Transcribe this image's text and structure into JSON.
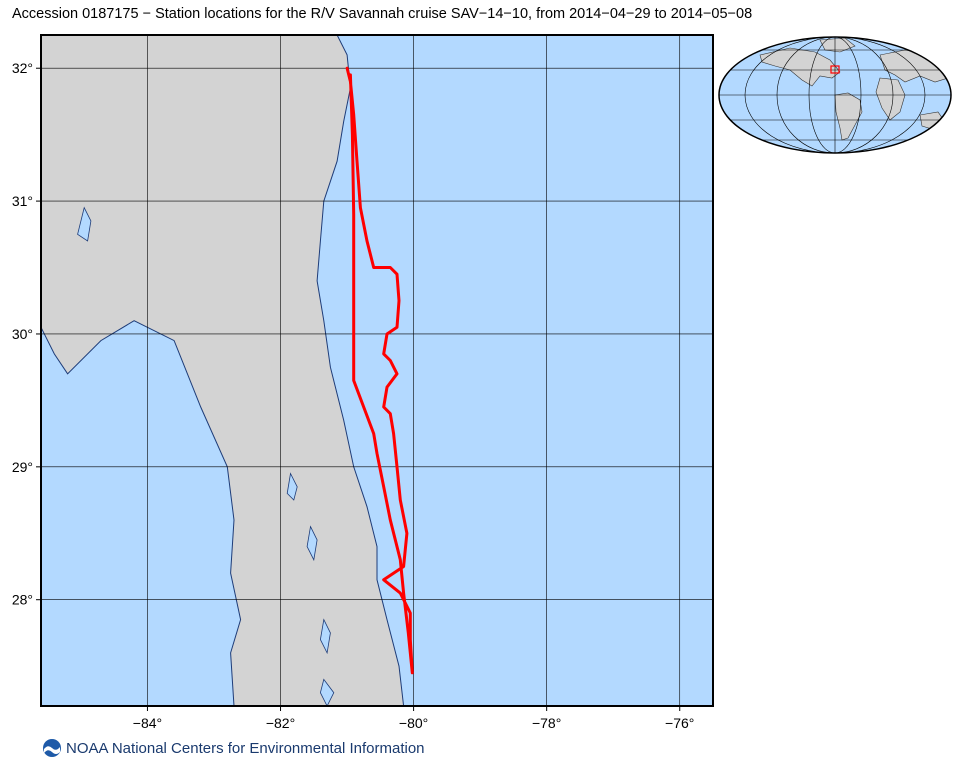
{
  "title": "Accession 0187175 − Station locations for the R/V Savannah cruise SAV−14−10, from 2014−04−29 to 2014−05−08",
  "footer": {
    "text": "NOAA National Centers for Environmental Information",
    "logo_icon": "noaa-logo-icon"
  },
  "map": {
    "lon_range": [
      -85.6,
      -75.5
    ],
    "lat_range": [
      27.2,
      32.25
    ],
    "lon_ticks": [
      {
        "value": -84,
        "label": "−84°"
      },
      {
        "value": -82,
        "label": "−82°"
      },
      {
        "value": -80,
        "label": "−80°"
      },
      {
        "value": -78,
        "label": "−78°"
      },
      {
        "value": -76,
        "label": "−76°"
      }
    ],
    "lat_ticks": [
      {
        "value": 32,
        "label": "32°"
      },
      {
        "value": 31,
        "label": "31°"
      },
      {
        "value": 30,
        "label": "30°"
      },
      {
        "value": 29,
        "label": "29°"
      },
      {
        "value": 28,
        "label": "28°"
      }
    ],
    "grid": true,
    "colors": {
      "ocean": "#b3d9ff",
      "land": "#d3d3d3",
      "coast": "#1e3c78",
      "track": "#ff0000",
      "grid": "#000000"
    },
    "track": [
      [
        -81.0,
        32.0
      ],
      [
        -80.95,
        31.9
      ],
      [
        -80.9,
        31.65
      ],
      [
        -80.85,
        31.3
      ],
      [
        -80.8,
        30.95
      ],
      [
        -80.7,
        30.7
      ],
      [
        -80.6,
        30.5
      ],
      [
        -80.35,
        30.5
      ],
      [
        -80.25,
        30.45
      ],
      [
        -80.22,
        30.25
      ],
      [
        -80.25,
        30.05
      ],
      [
        -80.4,
        30.0
      ],
      [
        -80.45,
        29.85
      ],
      [
        -80.35,
        29.8
      ],
      [
        -80.25,
        29.7
      ],
      [
        -80.4,
        29.6
      ],
      [
        -80.45,
        29.45
      ],
      [
        -80.35,
        29.4
      ],
      [
        -80.3,
        29.25
      ],
      [
        -80.25,
        29.0
      ],
      [
        -80.2,
        28.75
      ],
      [
        -80.1,
        28.5
      ],
      [
        -80.15,
        28.25
      ],
      [
        -80.45,
        28.15
      ],
      [
        -80.2,
        28.05
      ],
      [
        -80.05,
        27.9
      ],
      [
        -80.05,
        27.7
      ],
      [
        -80.02,
        27.45
      ],
      [
        -80.08,
        27.75
      ],
      [
        -80.15,
        28.05
      ],
      [
        -80.2,
        28.3
      ],
      [
        -80.35,
        28.6
      ],
      [
        -80.45,
        28.85
      ],
      [
        -80.55,
        29.1
      ],
      [
        -80.6,
        29.25
      ],
      [
        -80.9,
        29.65
      ],
      [
        -80.9,
        30.2
      ],
      [
        -80.9,
        30.9
      ],
      [
        -80.92,
        31.5
      ],
      [
        -80.95,
        31.95
      ]
    ],
    "land_polygon": [
      [
        -85.6,
        32.25
      ],
      [
        -81.15,
        32.25
      ],
      [
        -81.0,
        32.1
      ],
      [
        -80.95,
        31.85
      ],
      [
        -81.05,
        31.6
      ],
      [
        -81.15,
        31.3
      ],
      [
        -81.35,
        31.0
      ],
      [
        -81.4,
        30.7
      ],
      [
        -81.45,
        30.4
      ],
      [
        -81.35,
        30.1
      ],
      [
        -81.25,
        29.75
      ],
      [
        -81.05,
        29.35
      ],
      [
        -80.9,
        29.0
      ],
      [
        -80.7,
        28.7
      ],
      [
        -80.55,
        28.4
      ],
      [
        -80.55,
        28.15
      ],
      [
        -80.4,
        27.85
      ],
      [
        -80.22,
        27.5
      ],
      [
        -80.15,
        27.2
      ],
      [
        -82.7,
        27.2
      ],
      [
        -82.75,
        27.6
      ],
      [
        -82.6,
        27.85
      ],
      [
        -82.75,
        28.2
      ],
      [
        -82.7,
        28.6
      ],
      [
        -82.8,
        29.0
      ],
      [
        -83.2,
        29.45
      ],
      [
        -83.6,
        29.95
      ],
      [
        -84.2,
        30.1
      ],
      [
        -84.7,
        29.95
      ],
      [
        -85.2,
        29.7
      ],
      [
        -85.4,
        29.85
      ],
      [
        -85.6,
        30.05
      ]
    ],
    "lakes": [
      [
        [
          -84.95,
          30.95
        ],
        [
          -84.85,
          30.85
        ],
        [
          -84.9,
          30.7
        ],
        [
          -85.05,
          30.75
        ]
      ],
      [
        [
          -81.85,
          28.95
        ],
        [
          -81.75,
          28.85
        ],
        [
          -81.8,
          28.75
        ],
        [
          -81.9,
          28.8
        ]
      ],
      [
        [
          -81.55,
          28.55
        ],
        [
          -81.45,
          28.45
        ],
        [
          -81.5,
          28.3
        ],
        [
          -81.6,
          28.4
        ]
      ],
      [
        [
          -81.35,
          27.85
        ],
        [
          -81.25,
          27.75
        ],
        [
          -81.3,
          27.6
        ],
        [
          -81.4,
          27.7
        ]
      ],
      [
        [
          -81.3,
          27.2
        ],
        [
          -81.2,
          27.3
        ],
        [
          -81.35,
          27.4
        ],
        [
          -81.4,
          27.3
        ]
      ]
    ]
  },
  "inset": {
    "description_icon": "globe-inset-icon",
    "highlight_lon": -80.7,
    "highlight_lat": 29.8
  }
}
